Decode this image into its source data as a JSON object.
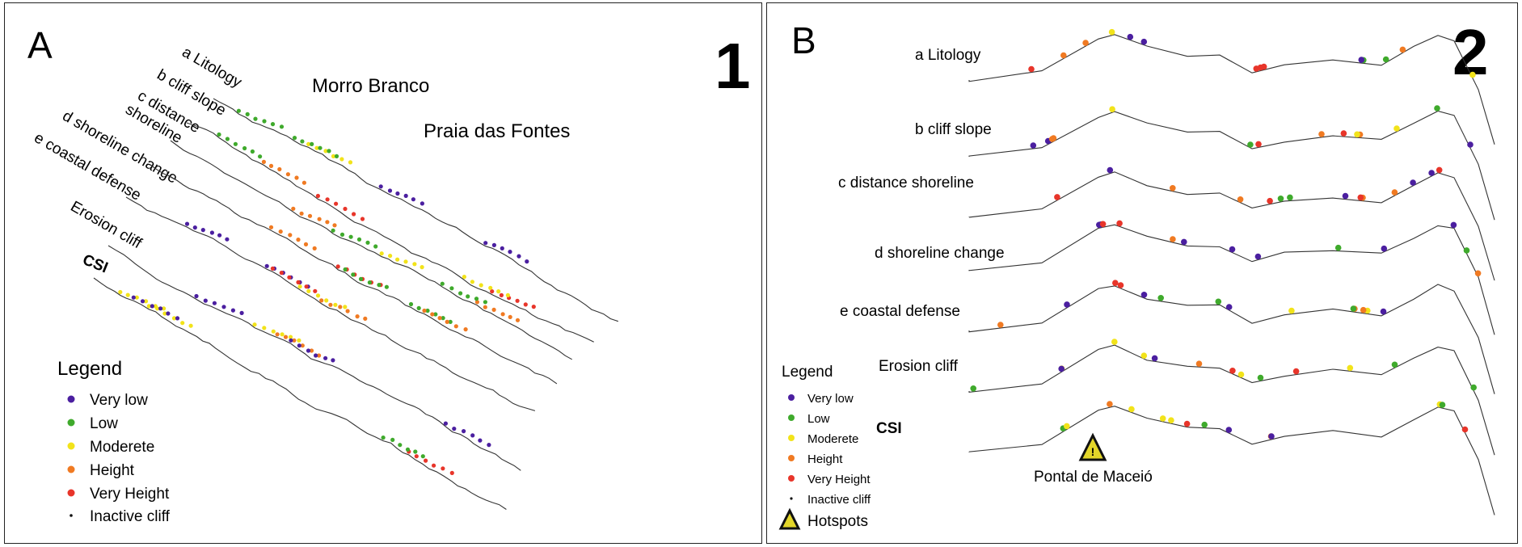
{
  "colors": {
    "very_low": "#4b1fa0",
    "low": "#3faa2c",
    "moderate": "#f2e31a",
    "height": "#f07a22",
    "very_height": "#e8352a",
    "inactive": "#111111",
    "line": "#333333"
  },
  "panelA": {
    "letter": "A",
    "number": "1",
    "places": [
      "Morro Branco",
      "Praia das Fontes"
    ],
    "criteria": [
      "a Litology",
      "b cliff slope",
      "c  distance",
      "shoreline",
      "d shoreline change",
      "e coastal defense",
      "Erosion cliff",
      "CSI"
    ],
    "legend": {
      "title": "Legend",
      "items": [
        "Very low",
        "Low",
        "Moderete",
        "Height",
        "Very Height",
        "Inactive cliff"
      ]
    }
  },
  "panelB": {
    "letter": "B",
    "number": "2",
    "criteria": [
      "a Litology",
      "b cliff slope",
      "c  distance shoreline",
      "d shoreline change",
      "e coastal defense",
      "Erosion cliff",
      "CSI"
    ],
    "hotspot_place": "Pontal de Maceió",
    "legend": {
      "title": "Legend",
      "items": [
        "Very low",
        "Low",
        "Moderete",
        "Height",
        "Very Height",
        "Inactive cliff"
      ],
      "hotspots": "Hotspots"
    }
  }
}
